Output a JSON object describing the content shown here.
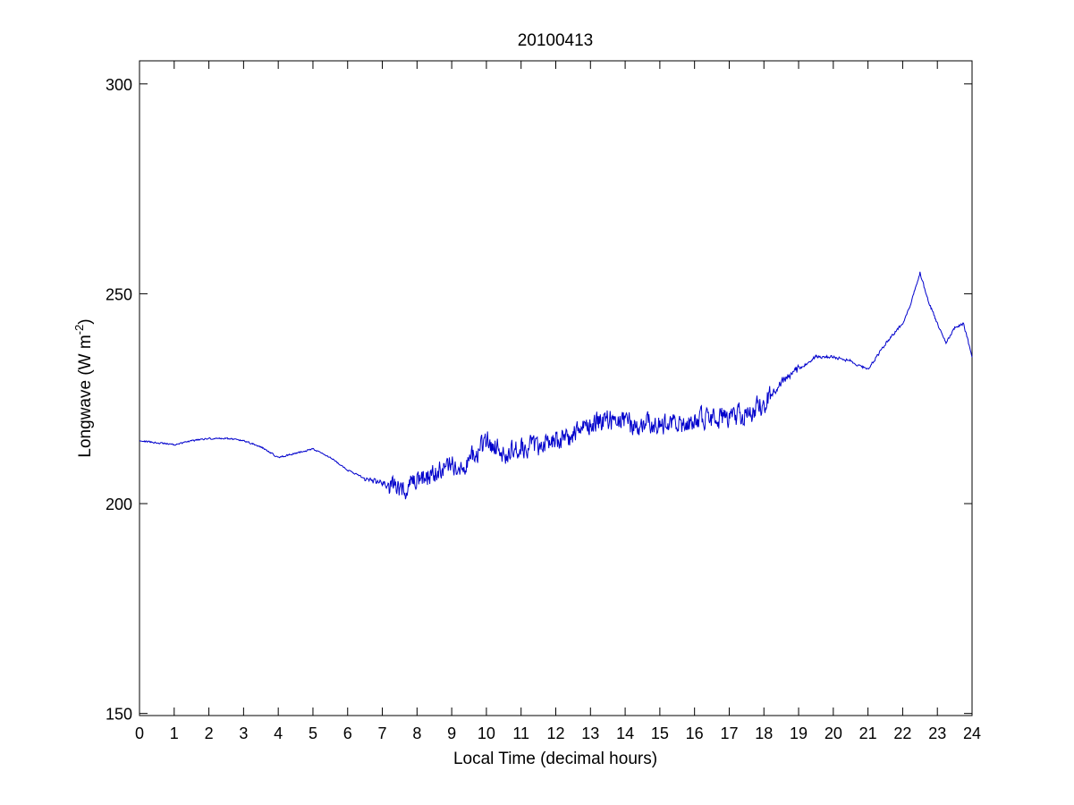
{
  "chart_data": {
    "type": "line",
    "title": "20100413",
    "xlabel": "Local Time (decimal hours)",
    "ylabel_main": "Longwave (W m",
    "ylabel_sup": "-2",
    "ylabel_close": ")",
    "xlim": [
      0,
      24
    ],
    "ylim": [
      149.5,
      305.5
    ],
    "xticks": [
      0,
      1,
      2,
      3,
      4,
      5,
      6,
      7,
      8,
      9,
      10,
      11,
      12,
      13,
      14,
      15,
      16,
      17,
      18,
      19,
      20,
      21,
      22,
      23,
      24
    ],
    "yticks": [
      150,
      200,
      250,
      300
    ],
    "grid": false,
    "line_color": "#0000cc",
    "series": [
      {
        "x": [
          0,
          0.5,
          1,
          1.5,
          2,
          2.5,
          3,
          3.5,
          4,
          4.5,
          5,
          5.5,
          6,
          6.5,
          7,
          7.5,
          8,
          8.5,
          9,
          9.5,
          10,
          10.5,
          11,
          11.5,
          12,
          12.5,
          13,
          13.5,
          14,
          14.5,
          15,
          15.5,
          16,
          16.5,
          17,
          17.5,
          18,
          18.5,
          19,
          19.5,
          20,
          20.5,
          21,
          21.5,
          22,
          22.25,
          22.5,
          22.75,
          23,
          23.25,
          23.5,
          23.75,
          24
        ],
        "y": [
          215,
          214.5,
          214,
          215,
          215.5,
          215.5,
          215,
          213.5,
          211,
          212,
          213,
          211,
          208,
          206,
          205,
          203,
          205,
          207,
          209,
          210,
          215,
          212,
          213,
          214,
          215,
          216,
          219,
          220,
          219,
          219,
          219,
          218.5,
          220,
          220,
          221,
          221,
          224,
          229,
          232,
          235,
          235,
          234,
          232,
          238,
          243,
          248,
          255,
          248,
          243,
          238,
          242,
          243,
          235
        ]
      }
    ]
  }
}
